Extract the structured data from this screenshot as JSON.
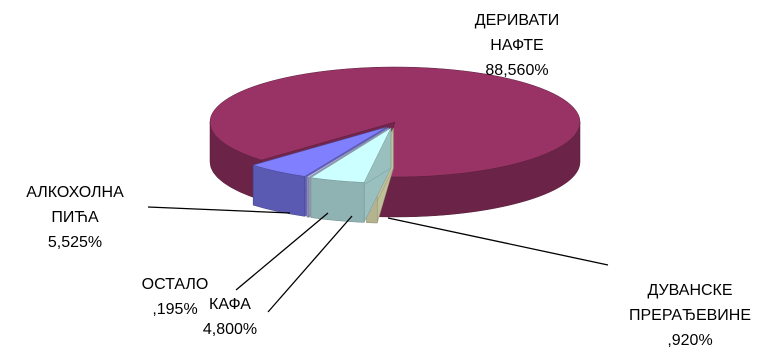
{
  "chart_data": {
    "type": "pie3d",
    "categories": [
      "ДЕРИВАТИ НАФТЕ",
      "ДУВАНСКЕ ПРЕРАЂЕВИНЕ",
      "КАФА",
      "ОСТАЛО",
      "АЛКОХОЛНА ПИЋА"
    ],
    "values": [
      88.56,
      0.92,
      4.8,
      0.195,
      5.525
    ],
    "value_labels": [
      "88,560%",
      ",920%",
      "4,800%",
      ",195%",
      "5,525%"
    ],
    "colors": [
      "#993366",
      "#ffffcc",
      "#ccffff",
      "#ccccff",
      "#8080ff"
    ]
  }
}
